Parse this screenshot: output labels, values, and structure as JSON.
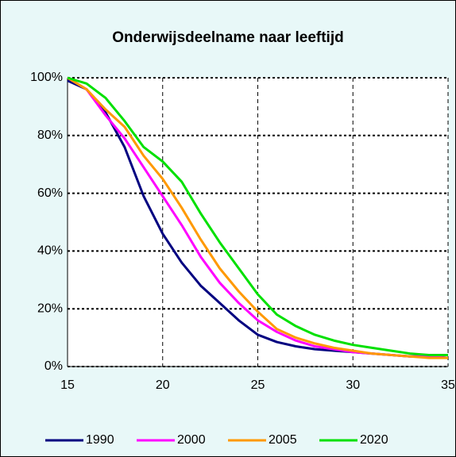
{
  "chart_data": {
    "type": "line",
    "title": "Onderwijsdeelname naar leeftijd",
    "x": [
      15,
      16,
      17,
      18,
      19,
      20,
      21,
      22,
      23,
      24,
      25,
      26,
      27,
      28,
      29,
      30,
      31,
      32,
      33,
      34,
      35
    ],
    "series": [
      {
        "name": "1990",
        "color": "#000080",
        "values": [
          99,
          96,
          88,
          76,
          59,
          46,
          36,
          28,
          22,
          16,
          11,
          8.5,
          7,
          6,
          5.5,
          5,
          4.5,
          4,
          3.5,
          3.5,
          3
        ]
      },
      {
        "name": "2000",
        "color": "#ff00ff",
        "values": [
          100,
          96,
          87,
          79,
          69,
          59,
          49,
          38,
          29,
          22,
          16,
          12,
          9,
          7,
          6,
          5,
          4.5,
          4,
          3.5,
          3.5,
          3
        ]
      },
      {
        "name": "2005",
        "color": "#ff9900",
        "values": [
          100,
          96,
          89,
          83,
          73,
          65,
          55,
          44,
          34,
          26,
          19,
          13,
          10,
          8,
          6.5,
          5.5,
          4.5,
          4,
          3.5,
          3,
          3
        ]
      },
      {
        "name": "2020",
        "color": "#00e000",
        "values": [
          100,
          98,
          93,
          85,
          76,
          71,
          64,
          53,
          43,
          34,
          25,
          18,
          14,
          11,
          9,
          7.5,
          6.5,
          5.5,
          4.5,
          4,
          4
        ]
      }
    ],
    "xlim": [
      15,
      35
    ],
    "xticks": [
      15,
      20,
      25,
      30,
      35
    ],
    "ylim": [
      0,
      100
    ],
    "yticks": [
      {
        "value": 0,
        "label": "0%"
      },
      {
        "value": 20,
        "label": "20%"
      },
      {
        "value": 40,
        "label": "40%"
      },
      {
        "value": 60,
        "label": "60%"
      },
      {
        "value": 80,
        "label": "80%"
      },
      {
        "value": 100,
        "label": "100%"
      }
    ],
    "grid": true,
    "legend": "bottom"
  }
}
